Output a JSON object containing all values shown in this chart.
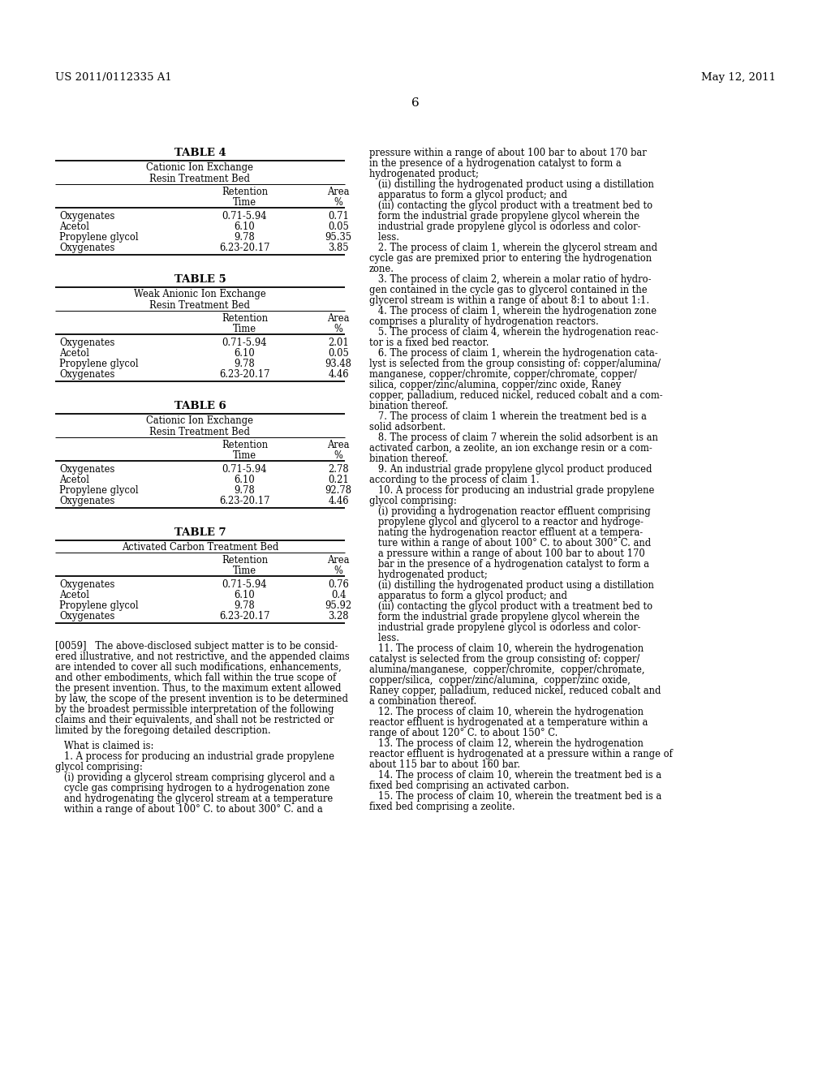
{
  "header_left": "US 2011/0112335 A1",
  "header_right": "May 12, 2011",
  "page_number": "6",
  "background_color": "#ffffff",
  "text_color": "#000000",
  "tables": [
    {
      "title": "TABLE 4",
      "subtitle": "Cationic Ion Exchange\nResin Treatment Bed",
      "rows": [
        [
          "Oxygenates",
          "0.71-5.94",
          "0.71"
        ],
        [
          "Acetol",
          "6.10",
          "0.05"
        ],
        [
          "Propylene glycol",
          "9.78",
          "95.35"
        ],
        [
          "Oxygenates",
          "6.23-20.17",
          "3.85"
        ]
      ]
    },
    {
      "title": "TABLE 5",
      "subtitle": "Weak Anionic Ion Exchange\nResin Treatment Bed",
      "rows": [
        [
          "Oxygenates",
          "0.71-5.94",
          "2.01"
        ],
        [
          "Acetol",
          "6.10",
          "0.05"
        ],
        [
          "Propylene glycol",
          "9.78",
          "93.48"
        ],
        [
          "Oxygenates",
          "6.23-20.17",
          "4.46"
        ]
      ]
    },
    {
      "title": "TABLE 6",
      "subtitle": "Cationic Ion Exchange\nResin Treatment Bed",
      "rows": [
        [
          "Oxygenates",
          "0.71-5.94",
          "2.78"
        ],
        [
          "Acetol",
          "6.10",
          "0.21"
        ],
        [
          "Propylene glycol",
          "9.78",
          "92.78"
        ],
        [
          "Oxygenates",
          "6.23-20.17",
          "4.46"
        ]
      ]
    },
    {
      "title": "TABLE 7",
      "subtitle": "Activated Carbon Treatment Bed",
      "rows": [
        [
          "Oxygenates",
          "0.71-5.94",
          "0.76"
        ],
        [
          "Acetol",
          "6.10",
          "0.4"
        ],
        [
          "Propylene glycol",
          "9.78",
          "95.92"
        ],
        [
          "Oxygenates",
          "6.23-20.17",
          "3.28"
        ]
      ]
    }
  ],
  "left_body_lines": [
    {
      "text": "[0059]   The above-disclosed subject matter is to be consid-",
      "indent": 0
    },
    {
      "text": "ered illustrative, and not restrictive, and the appended claims",
      "indent": 0
    },
    {
      "text": "are intended to cover all such modifications, enhancements,",
      "indent": 0
    },
    {
      "text": "and other embodiments, which fall within the true scope of",
      "indent": 0
    },
    {
      "text": "the present invention. Thus, to the maximum extent allowed",
      "indent": 0
    },
    {
      "text": "by law, the scope of the present invention is to be determined",
      "indent": 0
    },
    {
      "text": "by the broadest permissible interpretation of the following",
      "indent": 0
    },
    {
      "text": "claims and their equivalents, and shall not be restricted or",
      "indent": 0
    },
    {
      "text": "limited by the foregoing detailed description.",
      "indent": 0
    },
    {
      "text": "",
      "indent": 0
    },
    {
      "text": "   What is claimed is:",
      "indent": 0
    },
    {
      "text": "   1. A process for producing an industrial grade propylene",
      "indent": 0
    },
    {
      "text": "glycol comprising:",
      "indent": 0
    },
    {
      "text": "   (i) providing a glycerol stream comprising glycerol and a",
      "indent": 0
    },
    {
      "text": "   cycle gas comprising hydrogen to a hydrogenation zone",
      "indent": 0
    },
    {
      "text": "   and hydrogenating the glycerol stream at a temperature",
      "indent": 0
    },
    {
      "text": "   within a range of about 100° C. to about 300° C. and a",
      "indent": 0
    }
  ],
  "right_body_lines": [
    "pressure within a range of about 100 bar to about 170 bar",
    "in the presence of a hydrogenation catalyst to form a",
    "hydrogenated product;",
    "   (ii) distilling the hydrogenated product using a distillation",
    "   apparatus to form a glycol product; and",
    "   (iii) contacting the glycol product with a treatment bed to",
    "   form the industrial grade propylene glycol wherein the",
    "   industrial grade propylene glycol is odorless and color-",
    "   less.",
    "   2. The process of claim 1, wherein the glycerol stream and",
    "cycle gas are premixed prior to entering the hydrogenation",
    "zone.",
    "   3. The process of claim 2, wherein a molar ratio of hydro-",
    "gen contained in the cycle gas to glycerol contained in the",
    "glycerol stream is within a range of about 8:1 to about 1:1.",
    "   4. The process of claim 1, wherein the hydrogenation zone",
    "comprises a plurality of hydrogenation reactors.",
    "   5. The process of claim 4, wherein the hydrogenation reac-",
    "tor is a fixed bed reactor.",
    "   6. The process of claim 1, wherein the hydrogenation cata-",
    "lyst is selected from the group consisting of: copper/alumina/",
    "manganese, copper/chromite, copper/chromate, copper/",
    "silica, copper/zinc/alumina, copper/zinc oxide, Raney",
    "copper, palladium, reduced nickel, reduced cobalt and a com-",
    "bination thereof.",
    "   7. The process of claim 1 wherein the treatment bed is a",
    "solid adsorbent.",
    "   8. The process of claim 7 wherein the solid adsorbent is an",
    "activated carbon, a zeolite, an ion exchange resin or a com-",
    "bination thereof.",
    "   9. An industrial grade propylene glycol product produced",
    "according to the process of claim 1.",
    "   10. A process for producing an industrial grade propylene",
    "glycol comprising:",
    "   (i) providing a hydrogenation reactor effluent comprising",
    "   propylene glycol and glycerol to a reactor and hydroge-",
    "   nating the hydrogenation reactor effluent at a tempera-",
    "   ture within a range of about 100° C. to about 300° C. and",
    "   a pressure within a range of about 100 bar to about 170",
    "   bar in the presence of a hydrogenation catalyst to form a",
    "   hydrogenated product;",
    "   (ii) distilling the hydrogenated product using a distillation",
    "   apparatus to form a glycol product; and",
    "   (iii) contacting the glycol product with a treatment bed to",
    "   form the industrial grade propylene glycol wherein the",
    "   industrial grade propylene glycol is odorless and color-",
    "   less.",
    "   11. The process of claim 10, wherein the hydrogenation",
    "catalyst is selected from the group consisting of: copper/",
    "alumina/manganese,  copper/chromite,  copper/chromate,",
    "copper/silica,  copper/zinc/alumina,  copper/zinc oxide,",
    "Raney copper, palladium, reduced nickel, reduced cobalt and",
    "a combination thereof.",
    "   12. The process of claim 10, wherein the hydrogenation",
    "reactor effluent is hydrogenated at a temperature within a",
    "range of about 120° C. to about 150° C.",
    "   13. The process of claim 12, wherein the hydrogenation",
    "reactor effluent is hydrogenated at a pressure within a range of",
    "about 115 bar to about 160 bar.",
    "   14. The process of claim 10, wherein the treatment bed is a",
    "fixed bed comprising an activated carbon.",
    "   15. The process of claim 10, wherein the treatment bed is a",
    "fixed bed comprising a zeolite."
  ]
}
